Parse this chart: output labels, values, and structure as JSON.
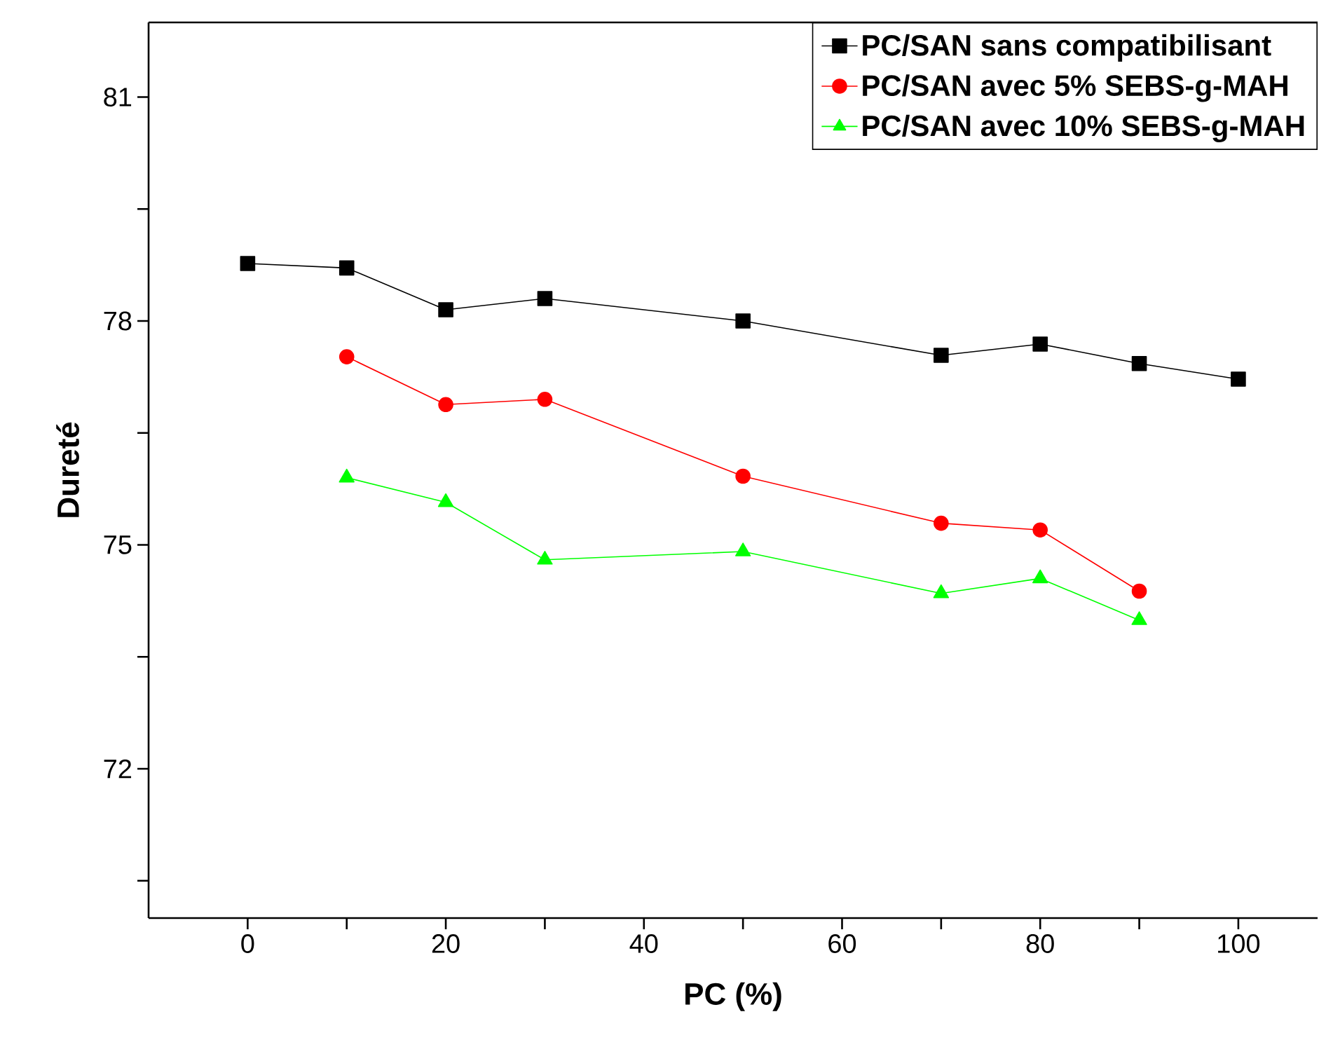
{
  "chart_data": {
    "type": "line",
    "xlabel": "PC (%)",
    "ylabel": "Dureté",
    "xlim": [
      -10,
      108
    ],
    "ylim": [
      70,
      82
    ],
    "xticks": [
      0,
      {
        "value": 10,
        "label": null
      },
      20,
      {
        "value": 30,
        "label": null
      },
      40,
      {
        "value": 50,
        "label": null
      },
      60,
      {
        "value": 70,
        "label": null
      },
      80,
      {
        "value": 90,
        "label": null
      },
      100
    ],
    "yticks": [
      {
        "value": 70.5,
        "label": null
      },
      72,
      {
        "value": 73.5,
        "label": null
      },
      75,
      {
        "value": 76.5,
        "label": null
      },
      78,
      {
        "value": 79.5,
        "label": null
      },
      81
    ],
    "grid": false,
    "legend": "top right",
    "series": [
      {
        "name": "PC/SAN sans compatibilisant",
        "color": "#000000",
        "marker": "square",
        "x": [
          0,
          10,
          20,
          30,
          50,
          70,
          80,
          90,
          100
        ],
        "values": [
          78.77,
          78.71,
          78.15,
          78.3,
          78.0,
          77.54,
          77.69,
          77.43,
          77.22
        ]
      },
      {
        "name": "PC/SAN avec 5%  SEBS-g-MAH",
        "color": "#ff0000",
        "marker": "circle",
        "x": [
          10,
          20,
          30,
          50,
          70,
          80,
          90
        ],
        "values": [
          77.52,
          76.88,
          76.95,
          75.92,
          75.29,
          75.2,
          74.38
        ]
      },
      {
        "name": "PC/SAN avec 10% SEBS-g-MAH",
        "color": "#00ff00",
        "marker": "triangle",
        "x": [
          10,
          20,
          30,
          50,
          70,
          80,
          90
        ],
        "values": [
          75.9,
          75.57,
          74.8,
          74.91,
          74.35,
          74.55,
          73.99
        ]
      }
    ]
  }
}
